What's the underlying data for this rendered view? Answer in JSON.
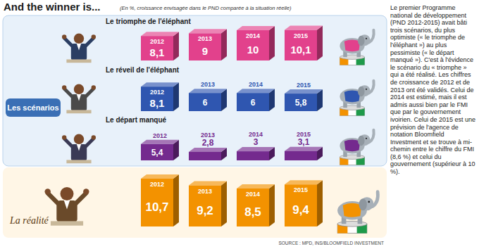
{
  "header": {
    "title": "And the winner is...",
    "subtitle": "(En %, croissance envisagée dans le PND comparée à la situation réelle)"
  },
  "group_labels": {
    "scenarios": "Les scénarios",
    "reality": "La réalité"
  },
  "chart_data": [
    {
      "type": "bar",
      "title": "Le triomphe de l'éléphant",
      "categories": [
        "2012",
        "2013",
        "2014",
        "2015"
      ],
      "values": [
        8.1,
        9,
        10,
        10.1
      ],
      "value_labels": [
        "8,1",
        "9",
        "10",
        "10,1"
      ],
      "color": "#e2418c",
      "data_labels": true
    },
    {
      "type": "bar",
      "title": "Le réveil de l'éléphant",
      "categories": [
        "2012",
        "2013",
        "2014",
        "2015"
      ],
      "values": [
        8.1,
        6,
        6,
        5.8
      ],
      "value_labels": [
        "8,1",
        "6",
        "6",
        "5,8"
      ],
      "color": "#2f56b0",
      "data_labels": true
    },
    {
      "type": "bar",
      "title": "Le départ manqué",
      "categories": [
        "2012",
        "2013",
        "2014",
        "2015"
      ],
      "values": [
        5.4,
        2.8,
        3,
        3.1
      ],
      "value_labels": [
        "5,4",
        "2,8",
        "3",
        "3,1"
      ],
      "color": "#742a8e",
      "data_labels": true
    },
    {
      "type": "bar",
      "categories": [
        "2012",
        "2013",
        "2014",
        "2015"
      ],
      "values": [
        10.7,
        9.2,
        8.5,
        9.4
      ],
      "value_labels": [
        "10,7",
        "9,2",
        "8,5",
        "9,4"
      ],
      "color": "#f39200",
      "data_labels": true
    }
  ],
  "note": "Le premier Programme national de développement (PND 2012-2015) avait bâti trois scénarios, du plus optimiste (« le triomphe de l'éléphant ») au plus pessimiste (« le départ manqué »). C'est à l'évidence le scénario du « triomphe » qui a été réalisé. Les chiffres de croissance de 2012 et de 2013 ont été validés. Celui de 2014 est estimé, mais il est admis aussi bien par le FMI que par le gouvernement ivoirien. Celui de 2015 est une prévision de l'agence de notation Bloomfield Investment et se trouve à mi-chemin entre le chiffre du FMI (8,6 %) et celui du gouvernement (supérieur à 10 %).",
  "source": "SOURCE : MPD, INS/BLOOMFIELD INVESTMENT"
}
